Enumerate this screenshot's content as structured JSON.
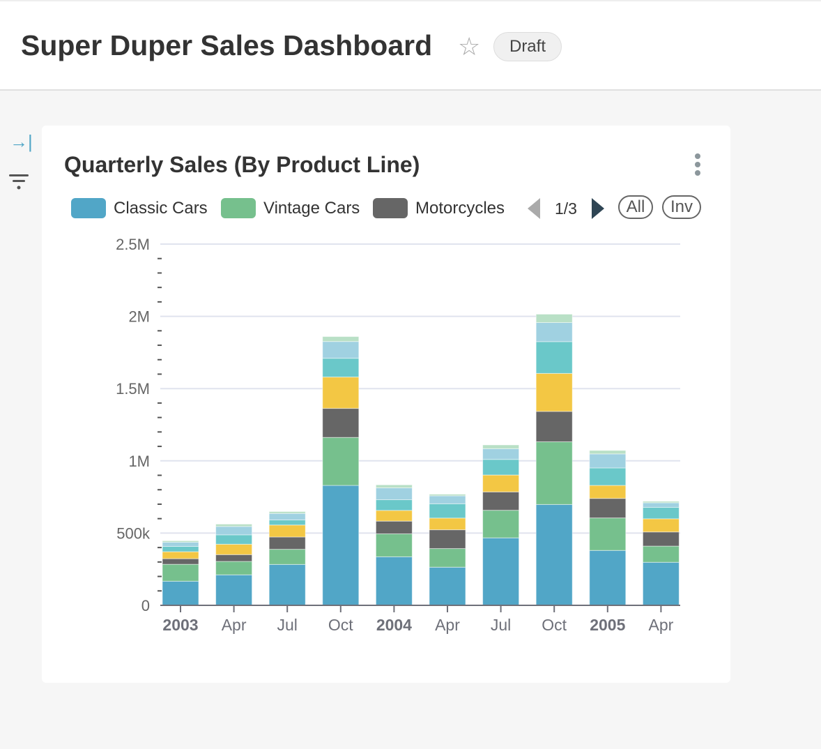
{
  "header": {
    "title": "Super Duper Sales Dashboard",
    "star_icon": "star-outline-icon",
    "status_badge": "Draft"
  },
  "sidebar": {
    "expand_icon": "expand-right-icon",
    "filter_icon": "filter-icon"
  },
  "card": {
    "title": "Quarterly Sales (By Product Line)",
    "menu_icon": "kebab-vertical-icon",
    "legend": {
      "items": [
        {
          "label": "Classic Cars",
          "color": "#51a6c7"
        },
        {
          "label": "Vintage Cars",
          "color": "#76c08d"
        },
        {
          "label": "Motorcycles",
          "color": "#666666"
        }
      ],
      "page": "1/3",
      "all_label": "All",
      "inv_label": "Inv"
    }
  },
  "chart_data": {
    "type": "bar",
    "stacked": true,
    "title": "Quarterly Sales (By Product Line)",
    "categories": [
      "2003",
      "Apr",
      "Jul",
      "Oct",
      "2004",
      "Apr",
      "Jul",
      "Oct",
      "2005",
      "Apr"
    ],
    "bold_categories": [
      "2003",
      "2004",
      "2005"
    ],
    "ylim": [
      0,
      2500000
    ],
    "y_ticks": [
      {
        "value": 0,
        "label": "0"
      },
      {
        "value": 500000,
        "label": "500k"
      },
      {
        "value": 1000000,
        "label": "1M"
      },
      {
        "value": 1500000,
        "label": "1.5M"
      },
      {
        "value": 2000000,
        "label": "2M"
      },
      {
        "value": 2500000,
        "label": "2.5M"
      }
    ],
    "grid": true,
    "legend": "top",
    "series": [
      {
        "name": "Classic Cars",
        "color": "#51a6c7",
        "values": [
          167000,
          211000,
          283000,
          830000,
          336000,
          264000,
          467000,
          698000,
          380000,
          298000
        ]
      },
      {
        "name": "Vintage Cars",
        "color": "#76c08d",
        "values": [
          117000,
          93000,
          105000,
          332000,
          159000,
          129000,
          191000,
          434000,
          225000,
          112000
        ]
      },
      {
        "name": "Motorcycles",
        "color": "#666666",
        "values": [
          39000,
          47000,
          85000,
          201000,
          88000,
          130000,
          127000,
          210000,
          135000,
          98000
        ]
      },
      {
        "color": "#f3c744",
        "values": [
          48000,
          72000,
          83000,
          217000,
          74000,
          81000,
          117000,
          263000,
          90000,
          91000
        ]
      },
      {
        "color": "#6ac8c9",
        "values": [
          37000,
          65000,
          35000,
          130000,
          74000,
          99000,
          108000,
          220000,
          121000,
          79000
        ]
      },
      {
        "color": "#a0d1e1",
        "values": [
          29000,
          58000,
          45000,
          116000,
          82000,
          55000,
          74000,
          132000,
          97000,
          32000
        ]
      },
      {
        "color": "#b9e0c6",
        "values": [
          10000,
          16000,
          13000,
          34000,
          21000,
          11000,
          26000,
          58000,
          24000,
          10000
        ]
      }
    ]
  }
}
